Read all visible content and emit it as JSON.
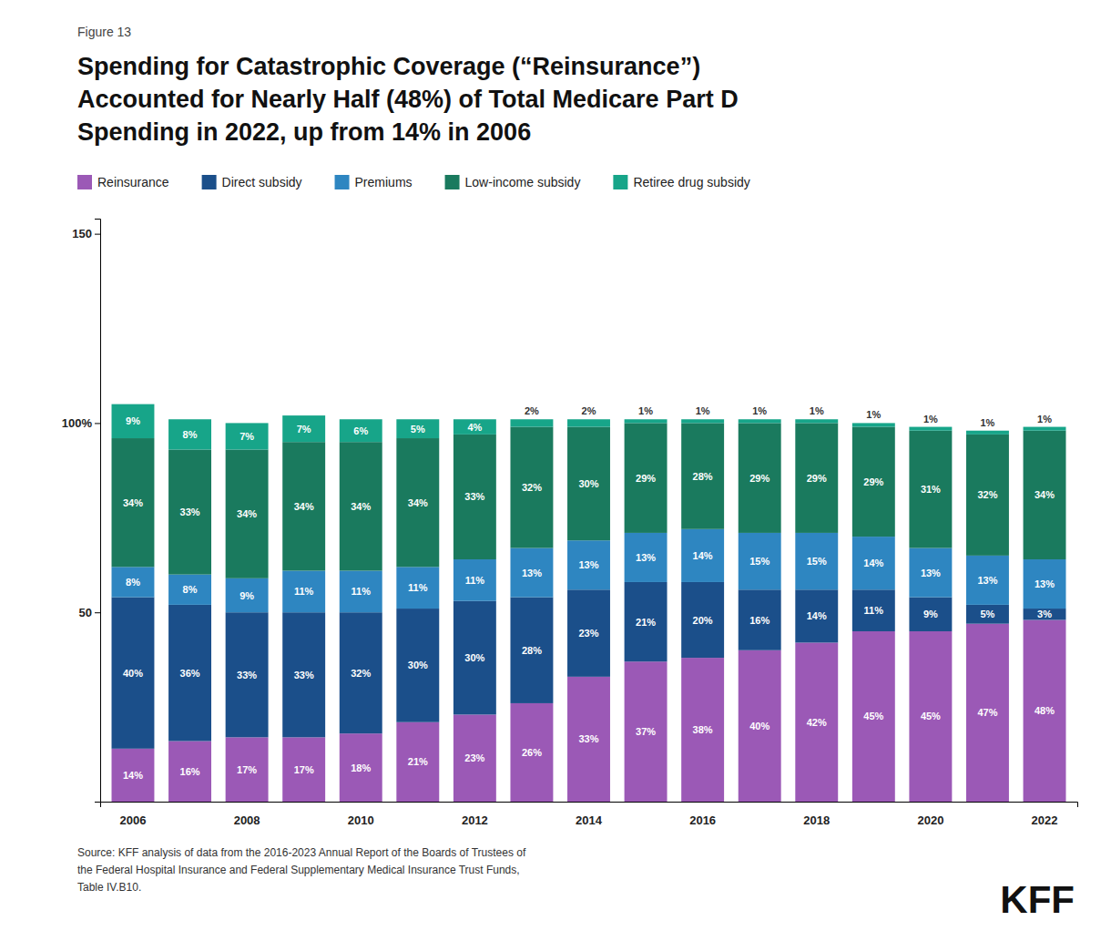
{
  "chart_data": {
    "type": "bar",
    "stacked": true,
    "data_labels": true,
    "grid": false,
    "legend": "top",
    "title": "Spending for Catastrophic Coverage (“Reinsurance”)\nAccounted for Nearly Half (48%) of Total Medicare Part D\nSpending in 2022, up from 14% in 2006",
    "annotations": [
      "Figure 13",
      "Source: KFF analysis of data from the 2016-2023 Annual Report of the Boards of Trustees of\nthe Federal Hospital Insurance and Federal Supplementary Medical Insurance Trust Funds,\nTable IV.B10.",
      "KFF"
    ],
    "categories": [
      "2006",
      null,
      "2008",
      null,
      "2010",
      null,
      "2012",
      null,
      "2014",
      null,
      "2016",
      null,
      "2018",
      null,
      "2020",
      null,
      "2022"
    ],
    "ylim": [
      0,
      154
    ],
    "yticks": [
      50,
      {
        "value": 100,
        "label": "100%"
      },
      150
    ],
    "series": [
      {
        "name": "Reinsurance",
        "color": "#9B59B6",
        "values": [
          14,
          16,
          17,
          17,
          18,
          21,
          23,
          26,
          33,
          37,
          38,
          40,
          42,
          45,
          45,
          47,
          48
        ],
        "value_labels": [
          "14%",
          "16%",
          "17%",
          "17%",
          "18%",
          "21%",
          "23%",
          "26%",
          "33%",
          "37%",
          "38%",
          "40%",
          "42%",
          "45%",
          "45%",
          "47%",
          "48%"
        ]
      },
      {
        "name": "Direct subsidy",
        "color": "#1B4F8A",
        "values": [
          40,
          36,
          33,
          33,
          32,
          30,
          30,
          28,
          23,
          21,
          20,
          16,
          14,
          11,
          9,
          5,
          3
        ],
        "value_labels": [
          "40%",
          "36%",
          "33%",
          "33%",
          "32%",
          "30%",
          "30%",
          "28%",
          "23%",
          "21%",
          "20%",
          "16%",
          "14%",
          "11%",
          "9%",
          "5%",
          "3%"
        ]
      },
      {
        "name": "Premiums",
        "color": "#2E86C1",
        "values": [
          8,
          8,
          9,
          11,
          11,
          11,
          11,
          13,
          13,
          13,
          14,
          15,
          15,
          14,
          13,
          13,
          13
        ],
        "value_labels": [
          "8%",
          "8%",
          "9%",
          "11%",
          "11%",
          "11%",
          "11%",
          "13%",
          "13%",
          "13%",
          "14%",
          "15%",
          "15%",
          "14%",
          "13%",
          "13%",
          "13%"
        ]
      },
      {
        "name": "Low-income subsidy",
        "color": "#1A7A5E",
        "values": [
          34,
          33,
          34,
          34,
          34,
          34,
          33,
          32,
          30,
          29,
          28,
          29,
          29,
          29,
          31,
          32,
          34
        ],
        "value_labels": [
          "34%",
          "33%",
          "34%",
          "34%",
          "34%",
          "34%",
          "33%",
          "32%",
          "30%",
          "29%",
          "28%",
          "29%",
          "29%",
          "29%",
          "31%",
          "32%",
          "34%"
        ]
      },
      {
        "name": "Retiree drug subsidy",
        "color": "#17A589",
        "values": [
          9,
          8,
          7,
          7,
          6,
          5,
          4,
          2,
          2,
          1,
          1,
          1,
          1,
          1,
          1,
          1,
          1
        ],
        "value_labels": [
          "9%",
          "8%",
          "7%",
          "7%",
          "6%",
          "5%",
          "4%",
          "2%",
          "2%",
          "1%",
          "1%",
          "1%",
          "1%",
          "1%",
          "1%",
          "1%",
          "1%"
        ]
      }
    ]
  }
}
